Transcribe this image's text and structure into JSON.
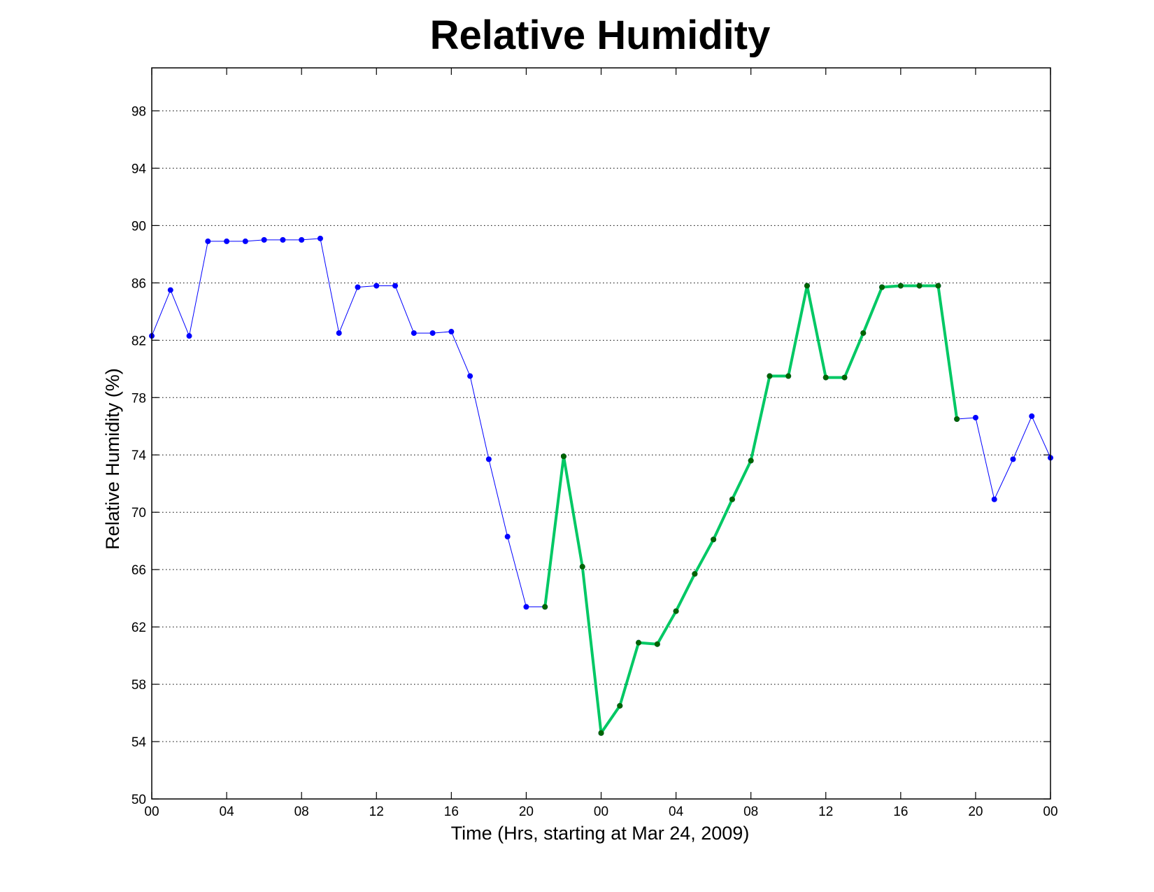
{
  "chart_data": {
    "type": "line",
    "title": "Relative Humidity",
    "xlabel": "Time (Hrs, starting at Mar 24, 2009)",
    "ylabel": "Relative Humidity (%)",
    "xlim": [
      0,
      48
    ],
    "ylim": [
      50,
      101
    ],
    "grid": "y-dotted",
    "x_ticks": [
      {
        "value": 0,
        "label": "00"
      },
      {
        "value": 4,
        "label": "04"
      },
      {
        "value": 8,
        "label": "08"
      },
      {
        "value": 12,
        "label": "12"
      },
      {
        "value": 16,
        "label": "16"
      },
      {
        "value": 20,
        "label": "20"
      },
      {
        "value": 24,
        "label": "00"
      },
      {
        "value": 28,
        "label": "04"
      },
      {
        "value": 32,
        "label": "08"
      },
      {
        "value": 36,
        "label": "12"
      },
      {
        "value": 40,
        "label": "16"
      },
      {
        "value": 44,
        "label": "20"
      },
      {
        "value": 48,
        "label": "00"
      }
    ],
    "y_ticks": [
      50,
      54,
      58,
      62,
      66,
      70,
      74,
      78,
      82,
      86,
      90,
      94,
      98
    ],
    "series": [
      {
        "color": "#0000ff",
        "marker_color": "#0000ff",
        "line_width": 1,
        "x": [
          0,
          1,
          2,
          3,
          4,
          5,
          6,
          7,
          8,
          9,
          10,
          11,
          12,
          13,
          14,
          15,
          16,
          17,
          18,
          19,
          20,
          21,
          22,
          23,
          24,
          25,
          26,
          27,
          28,
          29,
          30,
          31,
          32,
          33,
          34,
          35,
          36,
          37,
          38,
          39,
          40,
          41,
          42,
          43,
          44,
          45,
          46,
          47,
          48
        ],
        "values": [
          82.3,
          85.5,
          82.3,
          88.9,
          88.9,
          88.9,
          89.0,
          89.0,
          89.0,
          89.1,
          82.5,
          85.7,
          85.8,
          85.8,
          82.5,
          82.5,
          82.6,
          79.5,
          73.7,
          68.3,
          63.4,
          63.4,
          73.9,
          66.2,
          54.6,
          56.5,
          60.9,
          60.8,
          63.1,
          65.7,
          68.1,
          70.9,
          73.6,
          79.5,
          79.5,
          85.8,
          79.4,
          79.4,
          82.5,
          85.7,
          85.8,
          85.8,
          85.8,
          76.5,
          76.6,
          70.9,
          73.7,
          76.7,
          73.8
        ]
      },
      {
        "color": "#00c864",
        "marker_color": "#006400",
        "line_width": 4,
        "x": [
          21,
          22,
          23,
          24,
          25,
          26,
          27,
          28,
          29,
          30,
          31,
          32,
          33,
          34,
          35,
          36,
          37,
          38,
          39,
          40,
          41,
          42,
          43
        ],
        "values": [
          63.4,
          73.9,
          66.2,
          54.6,
          56.5,
          60.9,
          60.8,
          63.1,
          65.7,
          68.1,
          70.9,
          73.6,
          79.5,
          79.5,
          85.8,
          79.4,
          79.4,
          82.5,
          85.7,
          85.8,
          85.8,
          85.8,
          76.5
        ]
      }
    ]
  }
}
